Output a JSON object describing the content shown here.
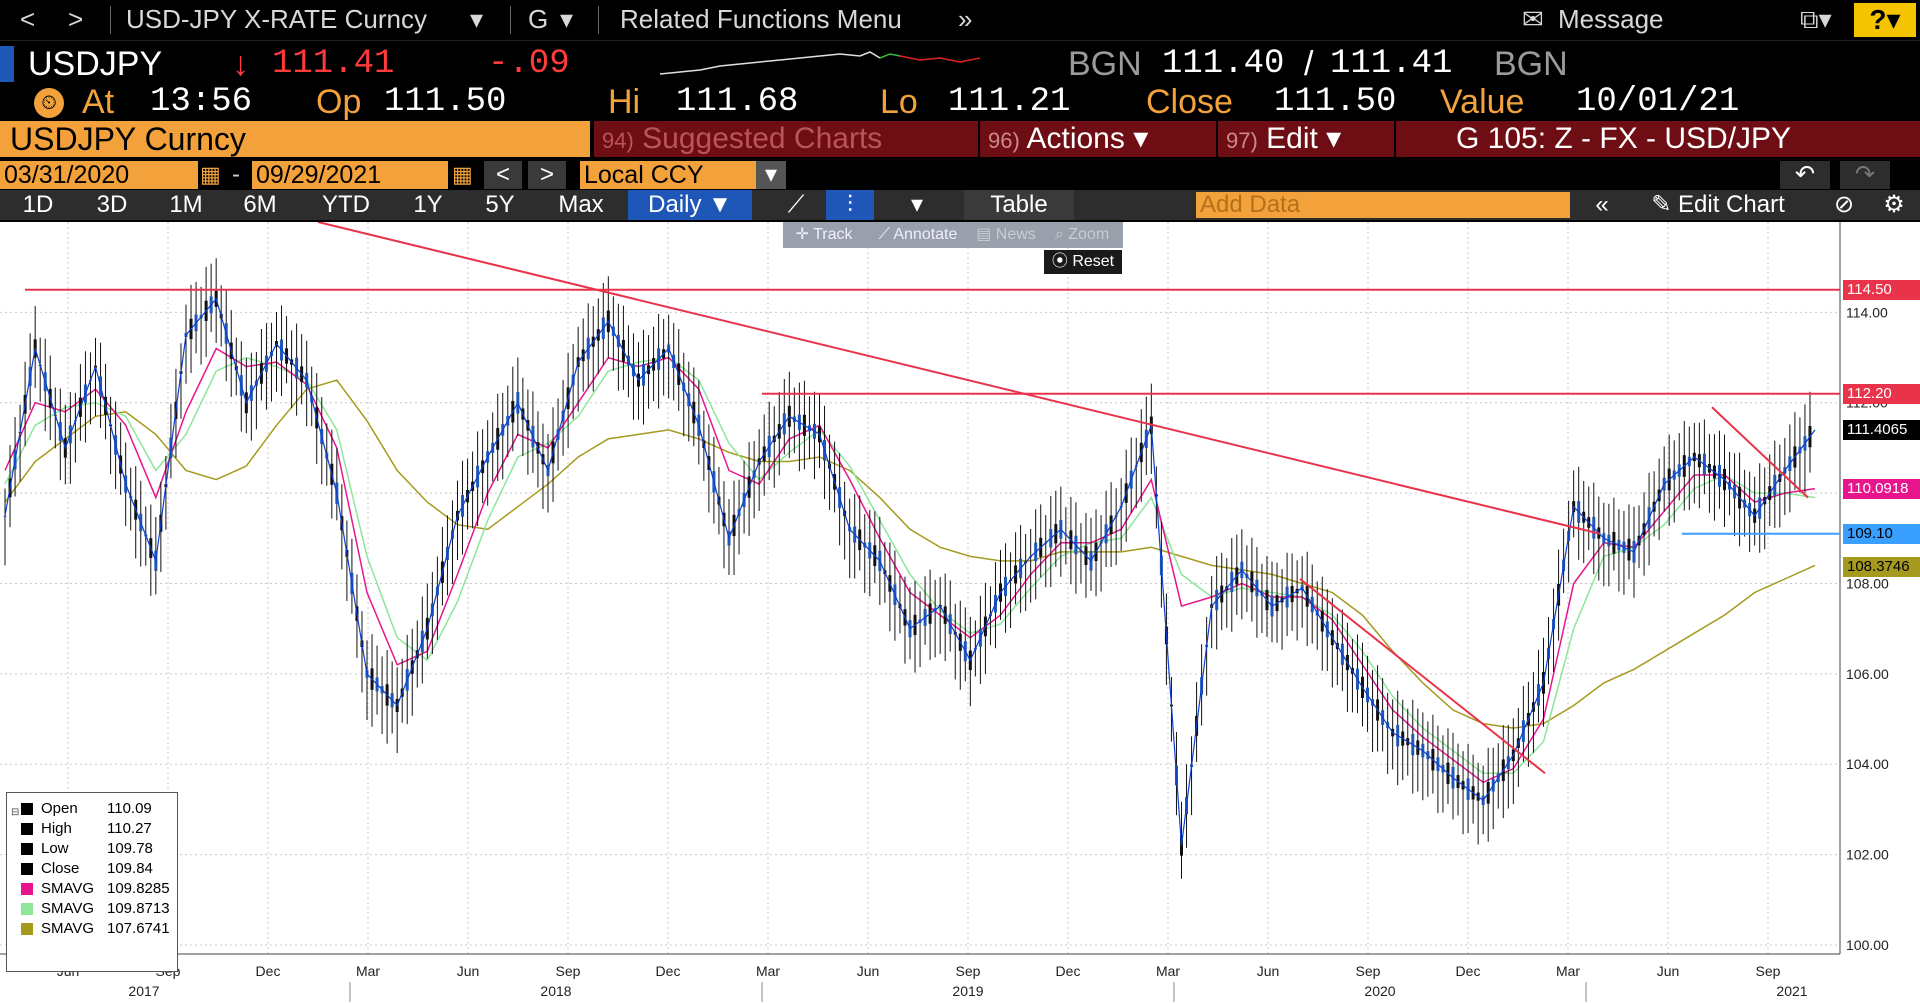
{
  "nav": {
    "back": "<",
    "forward": ">",
    "security": "USD-JPY X-RATE Curncy",
    "function": "G",
    "related": "Related Functions Menu",
    "message": "Message",
    "help": "?"
  },
  "quote": {
    "ticker": "USDJPY",
    "last": "111.41",
    "change": "-.09",
    "bid_src": "BGN",
    "bid": "111.40",
    "ask": "111.41",
    "ask_src": "BGN",
    "at_label": "At",
    "time": "13:56",
    "open_label": "Op",
    "open": "111.50",
    "hi_label": "Hi",
    "high": "111.68",
    "lo_label": "Lo",
    "low": "111.21",
    "close_label": "Close",
    "close": "111.50",
    "value_label": "Value",
    "value_date": "10/01/21"
  },
  "banner": {
    "ticker_box": "USDJPY Curncy",
    "suggested_num": "94)",
    "suggested": "Suggested Charts",
    "actions_num": "96)",
    "actions": "Actions",
    "edit_num": "97)",
    "edit": "Edit",
    "chart_id": "G 105: Z - FX - USD/JPY"
  },
  "range": {
    "start": "03/31/2020",
    "end": "09/29/2021",
    "currency": "Local CCY"
  },
  "periods": [
    "1D",
    "3D",
    "1M",
    "6M",
    "YTD",
    "1Y",
    "5Y",
    "Max"
  ],
  "toolbar": {
    "frequency": "Daily",
    "table": "Table",
    "add_data_placeholder": "Add Data",
    "edit_chart": "Edit Chart"
  },
  "chart_tools": {
    "track": "Track",
    "annotate": "Annotate",
    "news": "News",
    "zoom": "Zoom",
    "reset": "Reset"
  },
  "legend": [
    {
      "label": "Open",
      "value": "110.09",
      "color": "#000000"
    },
    {
      "label": "High",
      "value": "110.27",
      "color": "#000000"
    },
    {
      "label": "Low",
      "value": "109.78",
      "color": "#000000"
    },
    {
      "label": "Close",
      "value": "109.84",
      "color": "#000000"
    },
    {
      "label": "SMAVG",
      "value": "109.8285",
      "color": "#e8168c"
    },
    {
      "label": "SMAVG",
      "value": "109.8713",
      "color": "#8de69a"
    },
    {
      "label": "SMAVG",
      "value": "107.6741",
      "color": "#a59a1e"
    }
  ],
  "price_tags": [
    {
      "label": "114.50",
      "bg": "#e8334a",
      "fg": "#ffffff",
      "value": 114.5
    },
    {
      "label": "112.20",
      "bg": "#e8334a",
      "fg": "#ffffff",
      "value": 112.2
    },
    {
      "label": "111.4065",
      "bg": "#000000",
      "fg": "#ffffff",
      "value": 111.4065
    },
    {
      "label": "110.0918",
      "bg": "#e8168c",
      "fg": "#ffffff",
      "value": 110.0918
    },
    {
      "label": "109.10",
      "bg": "#3aa0ff",
      "fg": "#000000",
      "value": 109.1
    },
    {
      "label": "108.3746",
      "bg": "#a59a1e",
      "fg": "#000000",
      "value": 108.3746
    }
  ],
  "chart_data": {
    "type": "line",
    "y_ticks": [
      "100.00",
      "102.00",
      "104.00",
      "106.00",
      "108.00",
      "110.00",
      "112.00",
      "114.00"
    ],
    "ylim": [
      99.8,
      116.0
    ],
    "x_month_labels": [
      "Jun",
      "Sep",
      "Dec",
      "Mar",
      "Jun",
      "Sep",
      "Dec",
      "Mar",
      "Jun",
      "Sep",
      "Dec",
      "Mar",
      "Jun",
      "Sep",
      "Dec",
      "Mar",
      "Jun",
      "Sep"
    ],
    "x_year_labels": [
      "2017",
      "2018",
      "2019",
      "2020",
      "2021"
    ],
    "series": [
      {
        "name": "Close",
        "color": "#0b3fd1",
        "values": [
          109.5,
          113.2,
          111.0,
          112.8,
          110.2,
          108.5,
          113.5,
          114.3,
          112.0,
          113.3,
          112.5,
          110.0,
          106.0,
          105.3,
          107.0,
          109.5,
          110.8,
          112.0,
          110.5,
          112.9,
          113.8,
          112.5,
          113.2,
          111.5,
          109.0,
          110.7,
          111.7,
          111.3,
          109.2,
          108.5,
          107.0,
          107.5,
          106.3,
          107.8,
          108.6,
          109.2,
          108.5,
          109.7,
          111.5,
          102.2,
          107.5,
          108.3,
          107.5,
          107.9,
          106.8,
          105.7,
          104.7,
          104.3,
          103.7,
          103.2,
          104.2,
          105.8,
          109.7,
          109.0,
          108.7,
          110.2,
          110.8,
          110.3,
          109.5,
          110.5,
          111.4
        ]
      },
      {
        "name": "SMAVG",
        "color": "#e8168c",
        "values": [
          110.5,
          112.0,
          111.8,
          112.3,
          111.5,
          109.9,
          111.8,
          113.2,
          112.8,
          112.9,
          112.4,
          111.0,
          107.8,
          106.2,
          106.5,
          108.2,
          110.0,
          111.3,
          111.0,
          112.0,
          113.0,
          112.8,
          113.0,
          112.3,
          110.5,
          110.2,
          111.2,
          111.5,
          110.3,
          109.0,
          107.8,
          107.3,
          106.8,
          107.3,
          108.2,
          108.9,
          108.9,
          109.2,
          110.3,
          107.5,
          107.7,
          108.0,
          107.7,
          107.7,
          107.2,
          106.2,
          105.2,
          104.6,
          104.1,
          103.6,
          103.9,
          105.0,
          108.0,
          108.9,
          108.8,
          109.6,
          110.4,
          110.4,
          109.8,
          110.0,
          110.1
        ]
      },
      {
        "name": "SMAVG",
        "color": "#8de69a",
        "values": [
          110.2,
          111.5,
          111.9,
          112.0,
          111.7,
          110.5,
          111.3,
          112.7,
          113.0,
          112.8,
          112.5,
          111.4,
          108.6,
          106.8,
          106.3,
          107.6,
          109.4,
          110.8,
          111.1,
          111.7,
          112.7,
          112.9,
          113.0,
          112.5,
          111.1,
          110.3,
          110.9,
          111.4,
          110.6,
          109.4,
          108.2,
          107.4,
          106.9,
          107.1,
          107.9,
          108.6,
          108.9,
          109.0,
          109.9,
          108.2,
          107.7,
          107.9,
          107.8,
          107.7,
          107.3,
          106.5,
          105.5,
          104.8,
          104.3,
          103.8,
          103.8,
          104.5,
          107.0,
          108.6,
          108.8,
          109.3,
          110.1,
          110.4,
          110.0,
          110.0,
          109.9
        ]
      },
      {
        "name": "SMAVG",
        "color": "#a59a1e",
        "values": [
          109.8,
          110.7,
          111.2,
          111.7,
          111.8,
          111.3,
          110.5,
          110.3,
          110.6,
          111.5,
          112.3,
          112.5,
          111.6,
          110.5,
          109.8,
          109.3,
          109.2,
          109.7,
          110.2,
          110.8,
          111.2,
          111.3,
          111.4,
          111.2,
          110.9,
          110.7,
          110.7,
          110.8,
          110.5,
          109.9,
          109.2,
          108.8,
          108.6,
          108.5,
          108.5,
          108.7,
          108.7,
          108.7,
          108.8,
          108.6,
          108.4,
          108.3,
          108.2,
          108.0,
          107.8,
          107.3,
          106.5,
          105.8,
          105.2,
          104.9,
          104.8,
          104.9,
          105.3,
          105.8,
          106.1,
          106.5,
          106.9,
          107.3,
          107.8,
          108.1,
          108.4
        ]
      }
    ]
  }
}
